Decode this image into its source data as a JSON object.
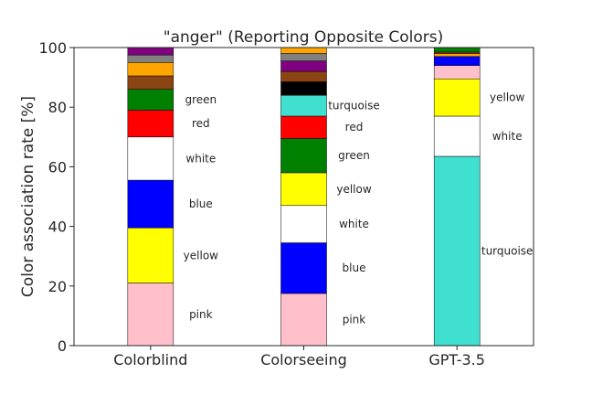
{
  "chart_data": {
    "type": "bar",
    "stacked": true,
    "title": "\"anger\" (Reporting Opposite Colors)",
    "ylabel": "Color association rate [%]",
    "xlabel": "",
    "ylim": [
      0,
      100
    ],
    "yticks": [
      0,
      20,
      40,
      60,
      80,
      100
    ],
    "grid": false,
    "categories": [
      "Colorblind",
      "Colorseeing",
      "GPT-3.5"
    ],
    "stacks": [
      {
        "category": "Colorblind",
        "segments": [
          {
            "color_name": "pink",
            "value": 21,
            "color": "#ffc0cb",
            "label": "pink"
          },
          {
            "color_name": "yellow",
            "value": 18.5,
            "color": "#ffff00",
            "label": "yellow"
          },
          {
            "color_name": "blue",
            "value": 16,
            "color": "#0000ff",
            "label": "blue"
          },
          {
            "color_name": "white",
            "value": 14.5,
            "color": "#ffffff",
            "label": "white"
          },
          {
            "color_name": "red",
            "value": 9,
            "color": "#ff0000",
            "label": "red"
          },
          {
            "color_name": "green",
            "value": 7,
            "color": "#008000",
            "label": "green"
          },
          {
            "color_name": "brown",
            "value": 4.5,
            "color": "#8b4513",
            "label": ""
          },
          {
            "color_name": "orange",
            "value": 4.5,
            "color": "#ffa500",
            "label": ""
          },
          {
            "color_name": "gray",
            "value": 2.5,
            "color": "#808080",
            "label": ""
          },
          {
            "color_name": "purple",
            "value": 2.5,
            "color": "#800080",
            "label": ""
          }
        ]
      },
      {
        "category": "Colorseeing",
        "segments": [
          {
            "color_name": "pink",
            "value": 17.5,
            "color": "#ffc0cb",
            "label": "pink"
          },
          {
            "color_name": "blue",
            "value": 17,
            "color": "#0000ff",
            "label": "blue"
          },
          {
            "color_name": "white",
            "value": 12.5,
            "color": "#ffffff",
            "label": "white"
          },
          {
            "color_name": "yellow",
            "value": 11,
            "color": "#ffff00",
            "label": "yellow"
          },
          {
            "color_name": "green",
            "value": 11.5,
            "color": "#008000",
            "label": "green"
          },
          {
            "color_name": "red",
            "value": 7.5,
            "color": "#ff0000",
            "label": "red"
          },
          {
            "color_name": "turquoise",
            "value": 7,
            "color": "#40e0d0",
            "label": "turquoise"
          },
          {
            "color_name": "black",
            "value": 4.5,
            "color": "#000000",
            "label": ""
          },
          {
            "color_name": "brown",
            "value": 3.5,
            "color": "#8b4513",
            "label": ""
          },
          {
            "color_name": "purple",
            "value": 3.5,
            "color": "#800080",
            "label": ""
          },
          {
            "color_name": "gray",
            "value": 2.5,
            "color": "#808080",
            "label": ""
          },
          {
            "color_name": "orange",
            "value": 2,
            "color": "#ffa500",
            "label": ""
          }
        ]
      },
      {
        "category": "GPT-3.5",
        "segments": [
          {
            "color_name": "turquoise",
            "value": 63.5,
            "color": "#40e0d0",
            "label": "turquoise"
          },
          {
            "color_name": "white",
            "value": 13.5,
            "color": "#ffffff",
            "label": "white"
          },
          {
            "color_name": "yellow",
            "value": 12.5,
            "color": "#ffff00",
            "label": "yellow"
          },
          {
            "color_name": "pink",
            "value": 4.5,
            "color": "#ffc0cb",
            "label": ""
          },
          {
            "color_name": "blue",
            "value": 3,
            "color": "#0000ff",
            "label": ""
          },
          {
            "color_name": "orange",
            "value": 1,
            "color": "#ffa500",
            "label": ""
          },
          {
            "color_name": "brown",
            "value": 0.5,
            "color": "#8b4513",
            "label": ""
          },
          {
            "color_name": "green",
            "value": 1.5,
            "color": "#008000",
            "label": ""
          }
        ]
      }
    ]
  }
}
